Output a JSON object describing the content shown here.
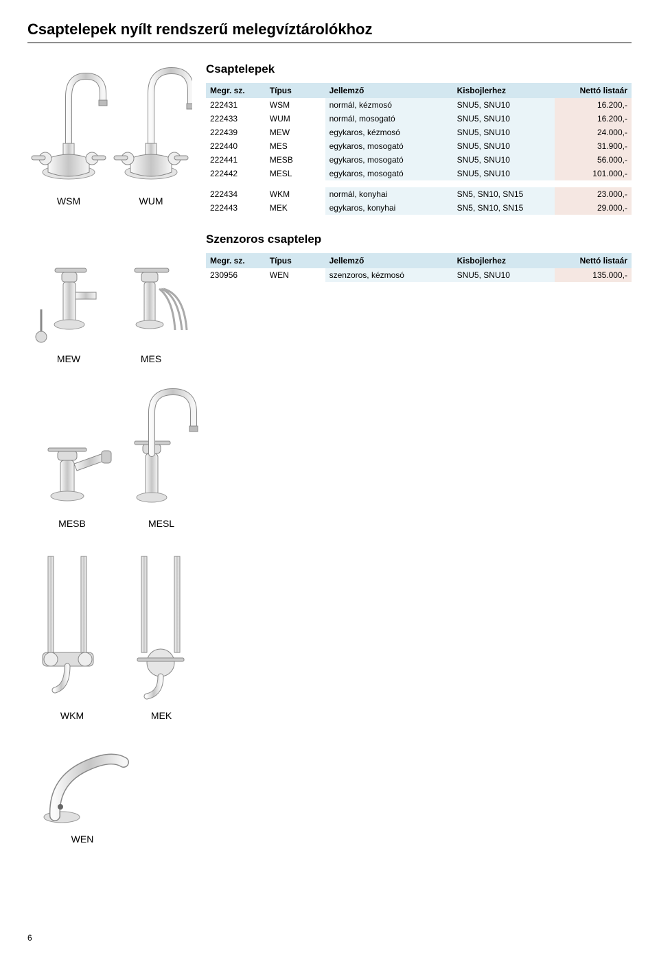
{
  "page": {
    "title": "Csaptelepek nyílt rendszerű melegvíztárolókhoz",
    "number": "6"
  },
  "section1": {
    "heading": "Csaptelepek",
    "headers": {
      "c1": "Megr. sz.",
      "c2": "Típus",
      "c3": "Jellemző",
      "c4": "Kisbojlerhez",
      "c5": "Nettó listaár"
    },
    "rows": [
      {
        "c1": "222431",
        "c2": "WSM",
        "c3": "normál, kézmosó",
        "c4": "SNU5, SNU10",
        "c5": "16.200,-"
      },
      {
        "c1": "222433",
        "c2": "WUM",
        "c3": "normál, mosogató",
        "c4": "SNU5, SNU10",
        "c5": "16.200,-"
      },
      {
        "c1": "222439",
        "c2": "MEW",
        "c3": "egykaros, kézmosó",
        "c4": "SNU5, SNU10",
        "c5": "24.000,-"
      },
      {
        "c1": "222440",
        "c2": "MES",
        "c3": "egykaros, mosogató",
        "c4": "SNU5, SNU10",
        "c5": "31.900,-"
      },
      {
        "c1": "222441",
        "c2": "MESB",
        "c3": "egykaros, mosogató",
        "c4": "SNU5, SNU10",
        "c5": "56.000,-"
      },
      {
        "c1": "222442",
        "c2": "MESL",
        "c3": "egykaros, mosogató",
        "c4": "SNU5, SNU10",
        "c5": "101.000,-"
      }
    ],
    "rows_b": [
      {
        "c1": "222434",
        "c2": "WKM",
        "c3": "normál, konyhai",
        "c4": "SN5, SN10, SN15",
        "c5": "23.000,-"
      },
      {
        "c1": "222443",
        "c2": "MEK",
        "c3": "egykaros, konyhai",
        "c4": "SN5, SN10, SN15",
        "c5": "29.000,-"
      }
    ]
  },
  "section2": {
    "heading": "Szenzoros csaptelep",
    "headers": {
      "c1": "Megr. sz.",
      "c2": "Típus",
      "c3": "Jellemző",
      "c4": "Kisbojlerhez",
      "c5": "Nettó listaár"
    },
    "rows": [
      {
        "c1": "230956",
        "c2": "WEN",
        "c3": "szenzoros, kézmosó",
        "c4": "SNU5, SNU10",
        "c5": "135.000,-"
      }
    ]
  },
  "labels": {
    "wsm": "WSM",
    "wum": "WUM",
    "mew": "MEW",
    "mes": "MES",
    "mesb": "MESB",
    "mesl": "MESL",
    "wkm": "WKM",
    "mek": "MEK",
    "wen": "WEN"
  },
  "colors": {
    "header_bg": "#d3e7f0",
    "hl_blue": "#eaf4f8",
    "hl_peach": "#f5e7e2",
    "stroke": "#7a7a7a",
    "fill": "#d8d8d8",
    "fill_light": "#f0f0f0"
  }
}
